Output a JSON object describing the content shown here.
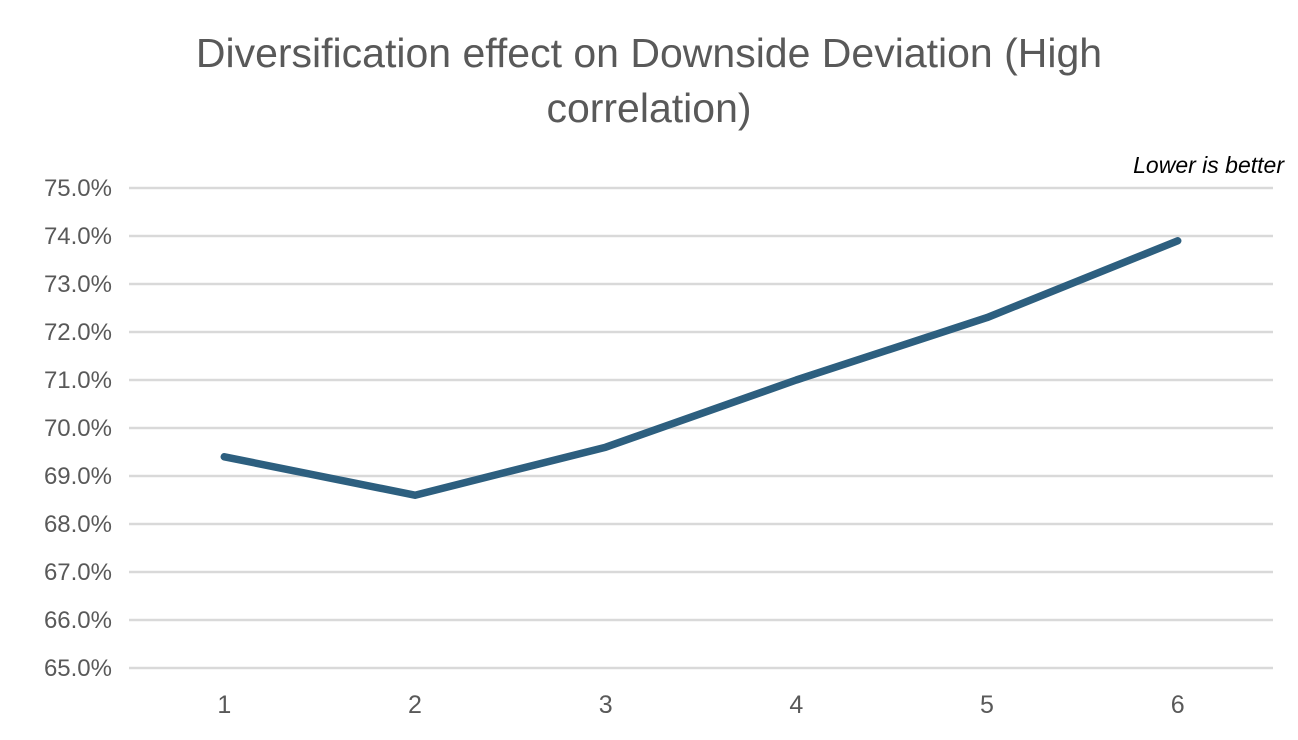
{
  "title": "Diversification effect on Downside Deviation (High correlation)",
  "annotation": "Lower is better",
  "colors": {
    "line": "#2d5f7f",
    "gridline": "#d9d9d9",
    "axis_text": "#595959",
    "title_text": "#595959",
    "annotation_text": "#000000",
    "background": "#ffffff"
  },
  "chart_data": {
    "type": "line",
    "title": "Diversification effect on Downside Deviation (High correlation)",
    "annotation": "Lower is better",
    "categories": [
      "1",
      "2",
      "3",
      "4",
      "5",
      "6"
    ],
    "values": [
      69.4,
      68.6,
      69.6,
      71.0,
      72.3,
      73.9
    ],
    "xlabel": "",
    "ylabel": "",
    "ylim": [
      65.0,
      75.0
    ],
    "ytick_step": 1.0,
    "ytick_labels": [
      "65.0%",
      "66.0%",
      "67.0%",
      "68.0%",
      "69.0%",
      "70.0%",
      "71.0%",
      "72.0%",
      "73.0%",
      "74.0%",
      "75.0%"
    ],
    "grid": true,
    "legend": "none"
  }
}
